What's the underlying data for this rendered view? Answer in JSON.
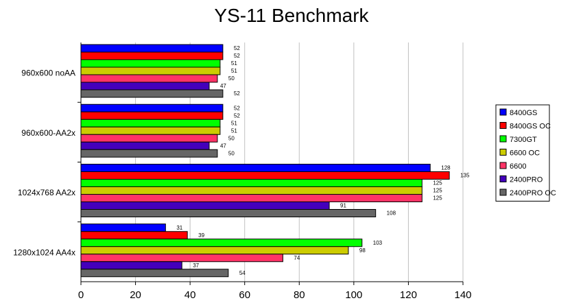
{
  "chart_data": {
    "type": "bar",
    "orientation": "horizontal",
    "title": "YS-11 Benchmark",
    "xlabel": "",
    "ylabel": "",
    "xlim": [
      0,
      140
    ],
    "xticks": [
      0,
      20,
      40,
      60,
      80,
      100,
      120,
      140
    ],
    "grid": true,
    "legend_position": "right",
    "categories": [
      "960x600 noAA",
      "960x600-AA2x",
      "1024x768 AA2x",
      "1280x1024 AA4x"
    ],
    "series": [
      {
        "name": "8400GS",
        "color": "#0000ff",
        "values": [
          52,
          52,
          128,
          31
        ]
      },
      {
        "name": "8400GS OC",
        "color": "#ff0000",
        "values": [
          52,
          52,
          135,
          39
        ]
      },
      {
        "name": "7300GT",
        "color": "#00ff00",
        "values": [
          51,
          51,
          125,
          103
        ]
      },
      {
        "name": "6600 OC",
        "color": "#cccc00",
        "values": [
          51,
          51,
          125,
          98
        ]
      },
      {
        "name": "6600",
        "color": "#ff3366",
        "values": [
          50,
          50,
          125,
          74
        ]
      },
      {
        "name": "2400PRO",
        "color": "#4400bb",
        "values": [
          47,
          47,
          91,
          37
        ]
      },
      {
        "name": "2400PRO OC",
        "color": "#666666",
        "values": [
          52,
          50,
          108,
          54
        ]
      }
    ]
  }
}
